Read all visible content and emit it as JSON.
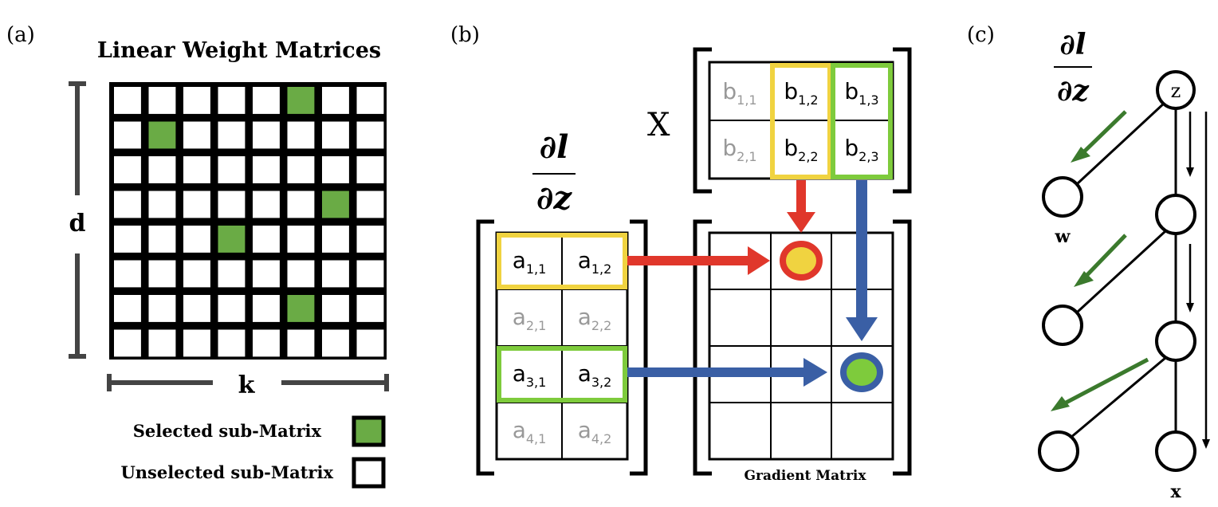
{
  "panel_a": {
    "label": "(a)",
    "title": "Linear Weight Matrices",
    "dim_d": "d",
    "dim_k": "k",
    "selected": [
      [
        0,
        5
      ],
      [
        1,
        1
      ],
      [
        3,
        6
      ],
      [
        4,
        3
      ],
      [
        6,
        5
      ]
    ],
    "legend_selected": "Selected sub-Matrix",
    "legend_unselected": "Unselected sub-Matrix"
  },
  "panel_b": {
    "label": "(b)",
    "x_label": "X",
    "grad_num": "∂l",
    "grad_den": "∂z",
    "b_cells": [
      [
        "b",
        "1,1",
        "b",
        "1,2",
        "b",
        "1,3"
      ],
      [
        "b",
        "2,1",
        "b",
        "2,2",
        "b",
        "2,3"
      ]
    ],
    "a_rows": [
      [
        "a",
        "1,1",
        "a",
        "1,2"
      ],
      [
        "a",
        "2,1",
        "a",
        "2,2"
      ],
      [
        "a",
        "3,1",
        "a",
        "3,2"
      ],
      [
        "a",
        "4,1",
        "a",
        "4,2"
      ]
    ],
    "gradient_label": "Gradient Matrix"
  },
  "panel_c": {
    "label": "(c)",
    "grad_num": "∂l",
    "grad_den": "∂z",
    "node_z": "z",
    "node_w": "w",
    "node_x": "x"
  },
  "colors": {
    "green": "#6aab45",
    "yellow": "#f0d340",
    "lime": "#7ecb3c",
    "red": "#e0372b",
    "blue": "#3a5fa5",
    "dark_green": "#3b7a2d",
    "grey_text": "#999999"
  }
}
